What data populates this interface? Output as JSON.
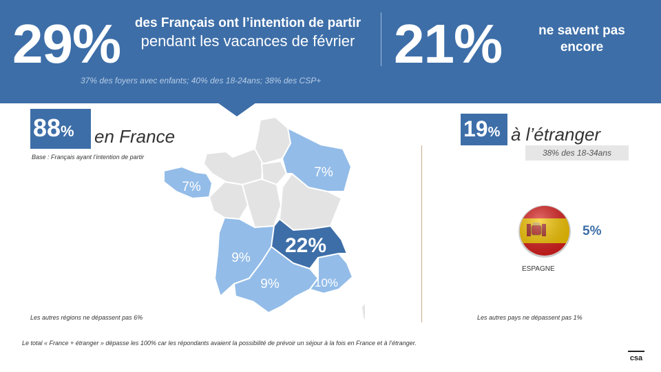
{
  "header": {
    "main_pct": "29%",
    "main_text_bold": "des Français ont l’intention de partir",
    "main_text_regular": "pendant les vacances de février",
    "secondary_pct": "21%",
    "secondary_text": "ne savent pas encore",
    "sub_stats": "37% des foyers avec enfants; 40% des 18-24ans; 38% des CSP+"
  },
  "france": {
    "pct_number": "88",
    "pct_sign": "%",
    "label": "en France",
    "base_note": "Base : Français ayant l’intention de partir",
    "regions": [
      {
        "name": "Bretagne",
        "value": "7%"
      },
      {
        "name": "Grand Est",
        "value": "7%"
      },
      {
        "name": "Auvergne-Rhône-Alpes",
        "value": "22%"
      },
      {
        "name": "Nouvelle-Aquitaine",
        "value": "9%"
      },
      {
        "name": "Occitanie",
        "value": "9%"
      },
      {
        "name": "Provence-Alpes-Côte d’Azur",
        "value": "10%"
      }
    ],
    "footnote": "Les autres régions ne dépassent pas 6%"
  },
  "abroad": {
    "pct_number": "19",
    "pct_sign": "%",
    "label": "à l’étranger",
    "badge": "38% des 18-34ans",
    "country_value": "5%",
    "country_label": "ESPAGNE",
    "footnote": "Les autres pays ne dépassent pas 1%"
  },
  "bottom_note": "Le total « France + étranger » dépasse les 100% car les répondants avaient la possibilité de prévoir un séjour à la fois en France et à l’étranger.",
  "colors": {
    "brand_blue": "#3d6ea8",
    "region_light": "#93bce8",
    "region_grey": "#e3e3e3",
    "spain_red": "#d9201f",
    "spain_yellow": "#f6c600"
  },
  "logo_text": "csa"
}
